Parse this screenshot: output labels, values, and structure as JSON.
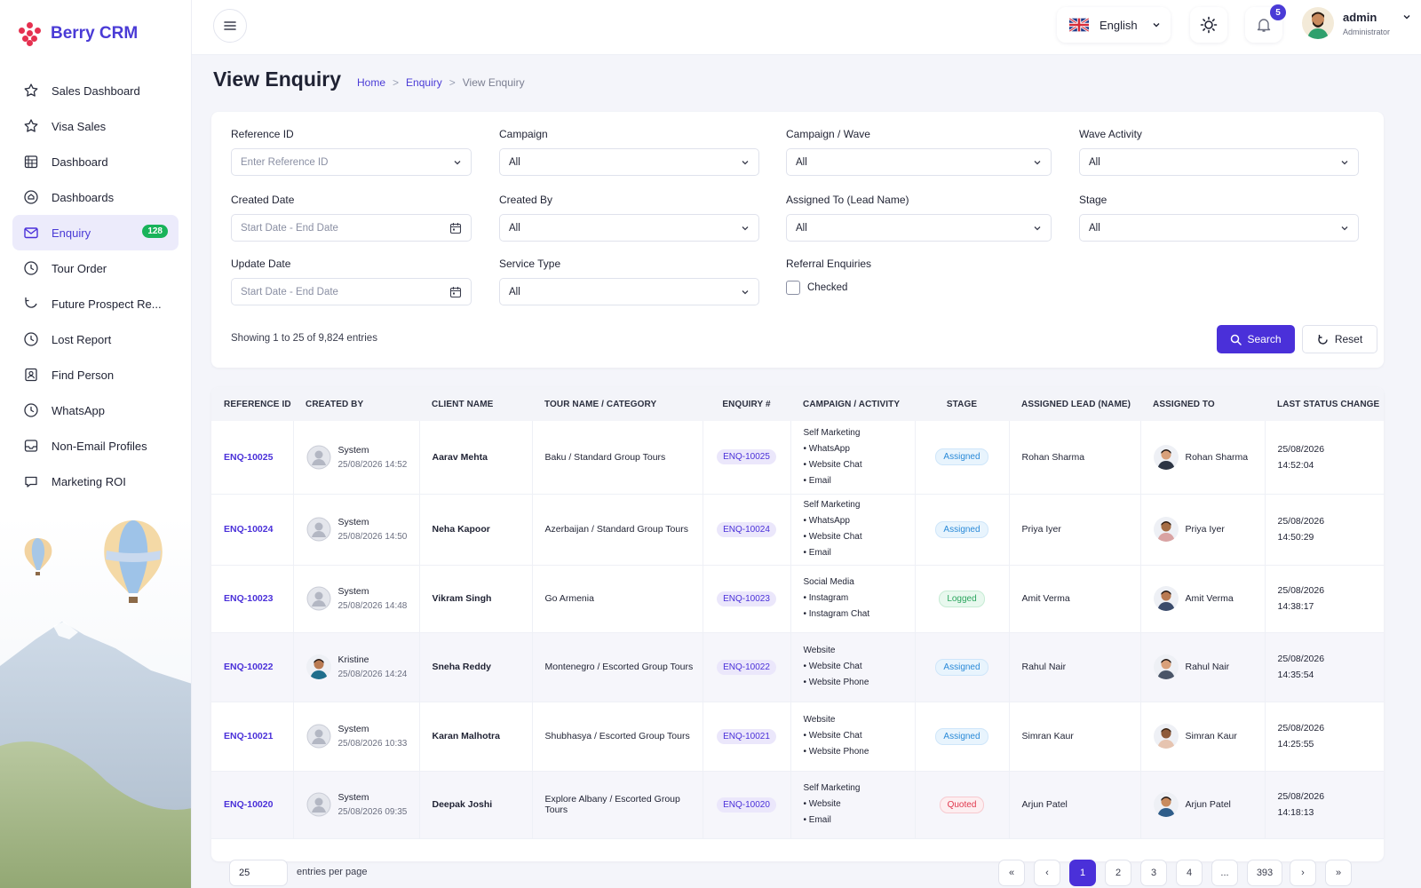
{
  "app": {
    "name": "Berry CRM"
  },
  "sidebar": {
    "items": [
      {
        "label": "Sales Dashboard",
        "icon": "star-icon"
      },
      {
        "label": "Visa Sales",
        "icon": "star-icon"
      },
      {
        "label": "Dashboard",
        "icon": "grid-calendar-icon"
      },
      {
        "label": "Dashboards",
        "icon": "home-circle-icon"
      },
      {
        "label": "Enquiry",
        "icon": "mail-icon",
        "badge": "128",
        "active": true
      },
      {
        "label": "Tour Order",
        "icon": "clock-icon"
      },
      {
        "label": "Future Prospect Re...",
        "icon": "refresh-icon"
      },
      {
        "label": "Lost Report",
        "icon": "clock-icon"
      },
      {
        "label": "Find Person",
        "icon": "user-card-icon"
      },
      {
        "label": "WhatsApp",
        "icon": "clock-icon"
      },
      {
        "label": "Non-Email Profiles",
        "icon": "inbox-icon"
      },
      {
        "label": "Marketing ROI",
        "icon": "chat-icon"
      }
    ]
  },
  "topbar": {
    "language": "English",
    "notifications": "5",
    "user_name": "admin",
    "user_role": "Administrator"
  },
  "page": {
    "title": "View Enquiry",
    "breadcrumb": [
      "Home",
      "Enquiry",
      "View Enquiry"
    ]
  },
  "filters": {
    "reference_id": {
      "label": "Reference ID",
      "placeholder": "Enter Reference ID"
    },
    "campaign": {
      "label": "Campaign",
      "value": "All"
    },
    "campaign_wave": {
      "label": "Campaign / Wave",
      "value": "All"
    },
    "wave_activity": {
      "label": "Wave Activity",
      "value": "All"
    },
    "created_date": {
      "label": "Created Date",
      "placeholder": "Start Date - End Date"
    },
    "created_by": {
      "label": "Created By",
      "value": "All"
    },
    "assigned_to": {
      "label": "Assigned To (Lead Name)",
      "value": "All"
    },
    "stage": {
      "label": "Stage",
      "value": "All"
    },
    "update_date": {
      "label": "Update Date",
      "placeholder": "Start Date - End Date"
    },
    "service_type": {
      "label": "Service Type",
      "value": "All"
    },
    "referral": {
      "label": "Referral Enquiries",
      "checkbox_label": "Checked"
    },
    "showing": "Showing 1 to 25 of 9,824 entries",
    "search_label": "Search",
    "reset_label": "Reset"
  },
  "table": {
    "headers": [
      "REFERENCE ID",
      "CREATED BY",
      "CLIENT NAME",
      "TOUR NAME / CATEGORY",
      "ENQUIRY #",
      "CAMPAIGN / ACTIVITY",
      "STAGE",
      "ASSIGNED LEAD (NAME)",
      "ASSIGNED TO",
      "LAST STATUS CHANGE"
    ],
    "rows": [
      {
        "ref": "ENQ-10025",
        "created_by": "System",
        "created_at": "25/08/2026 14:52",
        "client": "Aarav Mehta",
        "tour": "Baku / Standard Group Tours",
        "enquiry": "ENQ-10025",
        "campaign": [
          "Self Marketing",
          "• WhatsApp",
          "• Website Chat",
          "• Email"
        ],
        "stage": "Assigned",
        "lead": "Rohan Sharma",
        "assigned_to": "Rohan Sharma",
        "date": "25/08/2026",
        "time": "14:52:04"
      },
      {
        "ref": "ENQ-10024",
        "created_by": "System",
        "created_at": "25/08/2026 14:50",
        "client": "Neha Kapoor",
        "tour": "Azerbaijan / Standard Group Tours",
        "enquiry": "ENQ-10024",
        "campaign": [
          "Self Marketing",
          "• WhatsApp",
          "• Website Chat",
          "• Email"
        ],
        "stage": "Assigned",
        "lead": "Priya Iyer",
        "assigned_to": "Priya Iyer",
        "date": "25/08/2026",
        "time": "14:50:29"
      },
      {
        "ref": "ENQ-10023",
        "created_by": "System",
        "created_at": "25/08/2026 14:48",
        "client": "Vikram Singh",
        "tour": "Go Armenia",
        "enquiry": "ENQ-10023",
        "campaign": [
          "Social Media",
          "• Instagram",
          "• Instagram Chat"
        ],
        "stage": "Logged",
        "lead": "Amit Verma",
        "assigned_to": "Amit Verma",
        "date": "25/08/2026",
        "time": "14:38:17"
      },
      {
        "ref": "ENQ-10022",
        "created_by": "Kristine",
        "created_at": "25/08/2026 14:24",
        "client": "Sneha Reddy",
        "tour": "Montenegro / Escorted Group Tours",
        "enquiry": "ENQ-10022",
        "campaign": [
          "Website",
          "• Website Chat",
          "• Website Phone"
        ],
        "stage": "Assigned",
        "lead": "Rahul Nair",
        "assigned_to": "Rahul Nair",
        "date": "25/08/2026",
        "time": "14:35:54"
      },
      {
        "ref": "ENQ-10021",
        "created_by": "System",
        "created_at": "25/08/2026 10:33",
        "client": "Karan Malhotra",
        "tour": "Shubhasya / Escorted Group Tours",
        "enquiry": "ENQ-10021",
        "campaign": [
          "Website",
          "• Website Chat",
          "• Website Phone"
        ],
        "stage": "Assigned",
        "lead": "Simran Kaur",
        "assigned_to": "Simran Kaur",
        "date": "25/08/2026",
        "time": "14:25:55"
      },
      {
        "ref": "ENQ-10020",
        "created_by": "System",
        "created_at": "25/08/2026 09:35",
        "client": "Deepak Joshi",
        "tour": "Explore Albany / Escorted Group Tours",
        "enquiry": "ENQ-10020",
        "campaign": [
          "Self Marketing",
          "• Website",
          "• Email"
        ],
        "stage": "Quoted",
        "lead": "Arjun Patel",
        "assigned_to": "Arjun Patel",
        "date": "25/08/2026",
        "time": "14:18:13"
      }
    ]
  },
  "pagination": {
    "per_page": "25",
    "per_page_label": "entries per page",
    "pages": [
      "«",
      "‹",
      "1",
      "2",
      "3",
      "4",
      "...",
      "393",
      "›",
      "»"
    ],
    "current": "1"
  },
  "colors": {
    "accent": "#4a30d9",
    "brand_red": "#e53150",
    "badge_green": "#19b35a"
  }
}
